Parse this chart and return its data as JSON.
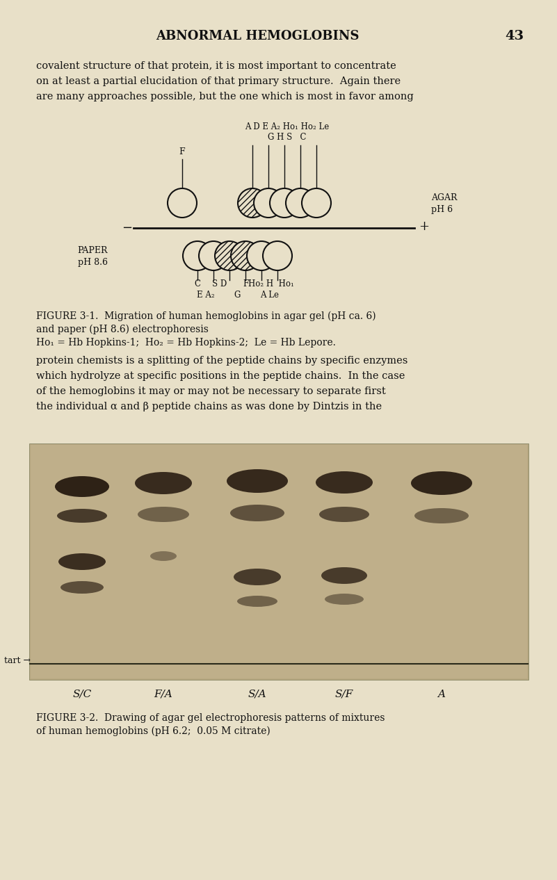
{
  "bg_color": "#e8e0c8",
  "page_title": "ABNORMAL HEMOGLOBINS",
  "page_number": "43",
  "para1_lines": [
    "covalent structure of that protein, it is most important to concentrate",
    "on at least a partial elucidation of that primary structure.  Again there",
    "are many approaches possible, but the one which is most in favor among"
  ],
  "para2_lines": [
    "protein chemists is a splitting of the peptide chains by specific enzymes",
    "which hydrolyze at specific positions in the peptide chains.  In the case",
    "of the hemoglobins it may or may not be necessary to separate first",
    "the individual α and β peptide chains as was done by Dintzis in the"
  ],
  "fig1_caption_lines": [
    "FIGURE 3-1.  Migration of human hemoglobins in agar gel (pH ca. 6)",
    "and paper (pH 8.6) electrophoresis",
    "Ho₁ = Hb Hopkins-1;  Ho₂ = Hb Hopkins-2;  Le = Hb Lepore."
  ],
  "fig2_caption_lines": [
    "FIGURE 3-2.  Drawing of agar gel electrophoresis patterns of mixtures",
    "of human hemoglobins (pH 6.2;  0.05 M citrate)"
  ],
  "start_label": "tart →",
  "lane_labels": [
    "S/C",
    "F/A",
    "S/A",
    "S/F",
    "A"
  ],
  "lane_centers_x": [
    118,
    235,
    370,
    495,
    635
  ],
  "agar_top_label": "A D E A₂ Ho₁ Ho₂ Le",
  "agar_mid_label": "G H S   C",
  "agar_f_label": "F",
  "paper_bottom_row1": [
    "C",
    "S D",
    "F",
    "Ho₂ H  Ho₁"
  ],
  "paper_bottom_row2": [
    "E A₂",
    "G",
    "A Le"
  ],
  "agar_label": "AGAR\npH 6",
  "paper_label": "PAPER\npH 8.6",
  "minus_sign": "−",
  "plus_sign": "+"
}
